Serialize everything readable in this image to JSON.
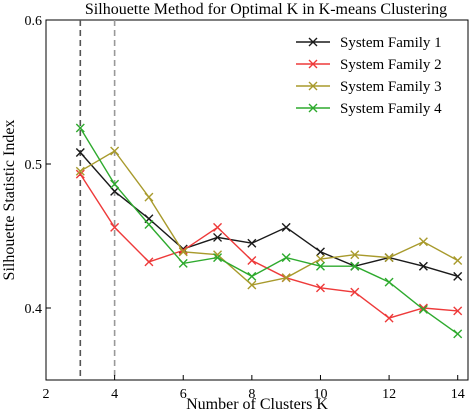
{
  "chart_data": {
    "type": "line",
    "title": "Silhouette Method for Optimal K in K-means Clustering",
    "xlabel": "Number of Clusters K",
    "ylabel": "Silhouette Statistic Index",
    "xlim": [
      2,
      14.3
    ],
    "ylim": [
      0.35,
      0.6
    ],
    "xticks": [
      2,
      4,
      6,
      8,
      10,
      12,
      14
    ],
    "yticks": [
      0.4,
      0.5,
      0.6
    ],
    "x": [
      3,
      4,
      5,
      6,
      7,
      8,
      9,
      10,
      11,
      12,
      13,
      14
    ],
    "reference_lines_x": [
      3,
      4
    ],
    "grid": false,
    "legend_position": "top-right",
    "marker": "x",
    "series": [
      {
        "name": "System Family 1",
        "color": "#1a1a1a",
        "values": [
          0.508,
          0.481,
          0.462,
          0.441,
          0.449,
          0.445,
          0.456,
          0.439,
          0.429,
          0.435,
          0.429,
          0.422
        ]
      },
      {
        "name": "System Family 2",
        "color": "#ee3a3a",
        "values": [
          0.493,
          0.456,
          0.432,
          0.44,
          0.456,
          0.433,
          0.421,
          0.414,
          0.411,
          0.393,
          0.4,
          0.398
        ]
      },
      {
        "name": "System Family 3",
        "color": "#a89a2c",
        "values": [
          0.495,
          0.509,
          0.477,
          0.439,
          0.437,
          0.416,
          0.421,
          0.434,
          0.437,
          0.435,
          0.446,
          0.433
        ]
      },
      {
        "name": "System Family 4",
        "color": "#2eaa2e",
        "values": [
          0.525,
          0.486,
          0.458,
          0.431,
          0.435,
          0.422,
          0.435,
          0.429,
          0.429,
          0.418,
          0.399,
          0.382
        ]
      }
    ]
  }
}
